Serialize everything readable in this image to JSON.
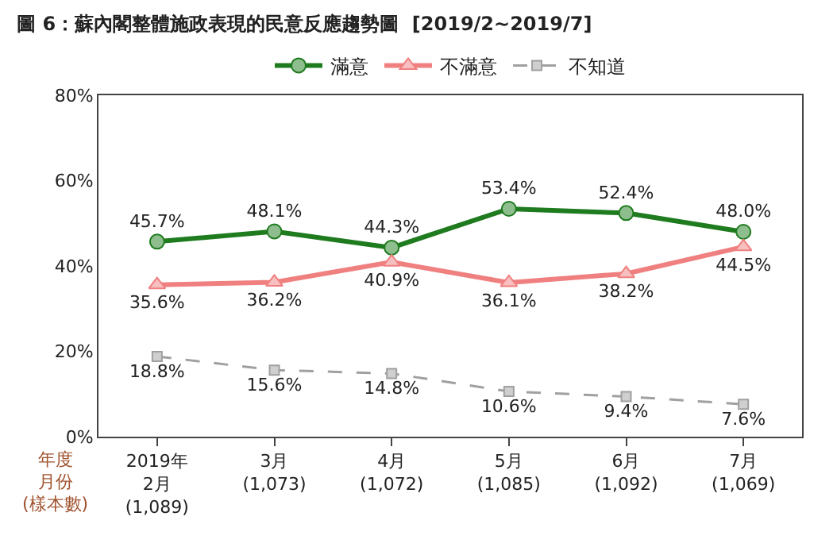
{
  "chart_data": {
    "type": "line",
    "title": "圖 6：蘇內閣整體施政表現的民意反應趨勢圖  [2019/2~2019/7]",
    "categories": [
      "2019年\n2月\n(1,089)",
      "3月\n(1,073)",
      "4月\n(1,072)",
      "5月\n(1,085)",
      "6月\n(1,092)",
      "7月\n(1,069)"
    ],
    "series": [
      {
        "name": "滿意",
        "color": "#1e7b1e",
        "marker": "circle",
        "line_style": "solid",
        "values": [
          45.7,
          48.1,
          44.3,
          53.4,
          52.4,
          48.0
        ],
        "value_labels": [
          "45.7%",
          "48.1%",
          "44.3%",
          "53.4%",
          "52.4%",
          "48.0%"
        ]
      },
      {
        "name": "不滿意",
        "color": "#f08080",
        "marker": "triangle",
        "line_style": "solid",
        "values": [
          35.6,
          36.2,
          40.9,
          36.1,
          38.2,
          44.5
        ],
        "value_labels": [
          "35.6%",
          "36.2%",
          "40.9%",
          "36.1%",
          "38.2%",
          "44.5%"
        ]
      },
      {
        "name": "不知道",
        "color": "#a0a0a0",
        "marker": "square",
        "line_style": "dashed",
        "values": [
          18.8,
          15.6,
          14.8,
          10.6,
          9.4,
          7.6
        ],
        "value_labels": [
          "18.8%",
          "15.6%",
          "14.8%",
          "10.6%",
          "9.4%",
          "7.6%"
        ]
      }
    ],
    "ylim": [
      0,
      80
    ],
    "yticks": [
      {
        "value": 0,
        "label": "0%"
      },
      {
        "value": 20,
        "label": "20%"
      },
      {
        "value": 40,
        "label": "40%"
      },
      {
        "value": 60,
        "label": "60%"
      },
      {
        "value": 80,
        "label": "80%"
      }
    ],
    "annotations": [
      "年度",
      "月份",
      "(樣本數)"
    ],
    "legend": "top",
    "grid": false
  }
}
